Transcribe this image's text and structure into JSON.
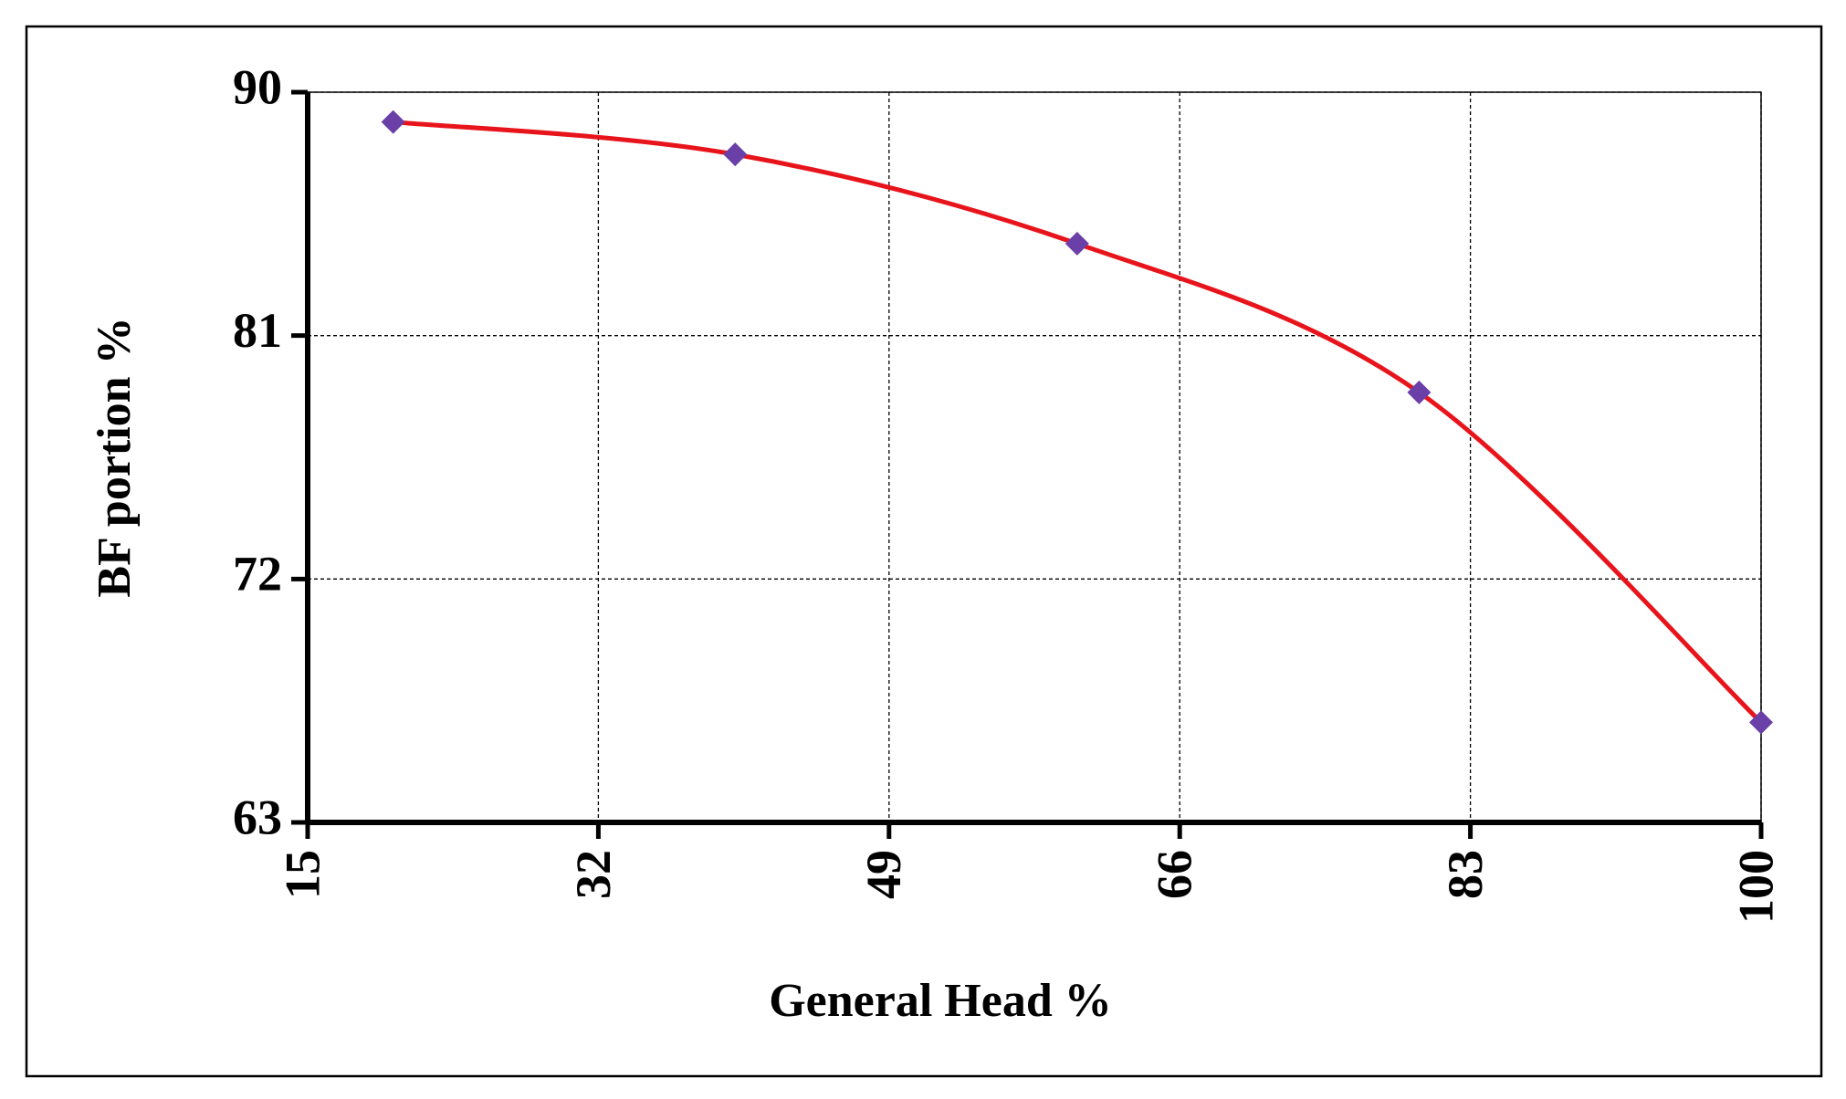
{
  "chart_data": {
    "type": "line",
    "x_label": "General Head %",
    "y_label": "BF portion %",
    "x": [
      20,
      40,
      60,
      80,
      100
    ],
    "series": [
      {
        "values": [
          88.9,
          87.7,
          84.4,
          78.9,
          66.7
        ],
        "color": "#e8141b",
        "marker_color": "#6a3fa8"
      }
    ],
    "xlim": [
      15,
      100
    ],
    "xticks": [
      15,
      32,
      49,
      66,
      83,
      100
    ],
    "ylim": [
      63,
      90
    ],
    "yticks": [
      63,
      72,
      81,
      90
    ],
    "grid": true,
    "smooth": true
  }
}
